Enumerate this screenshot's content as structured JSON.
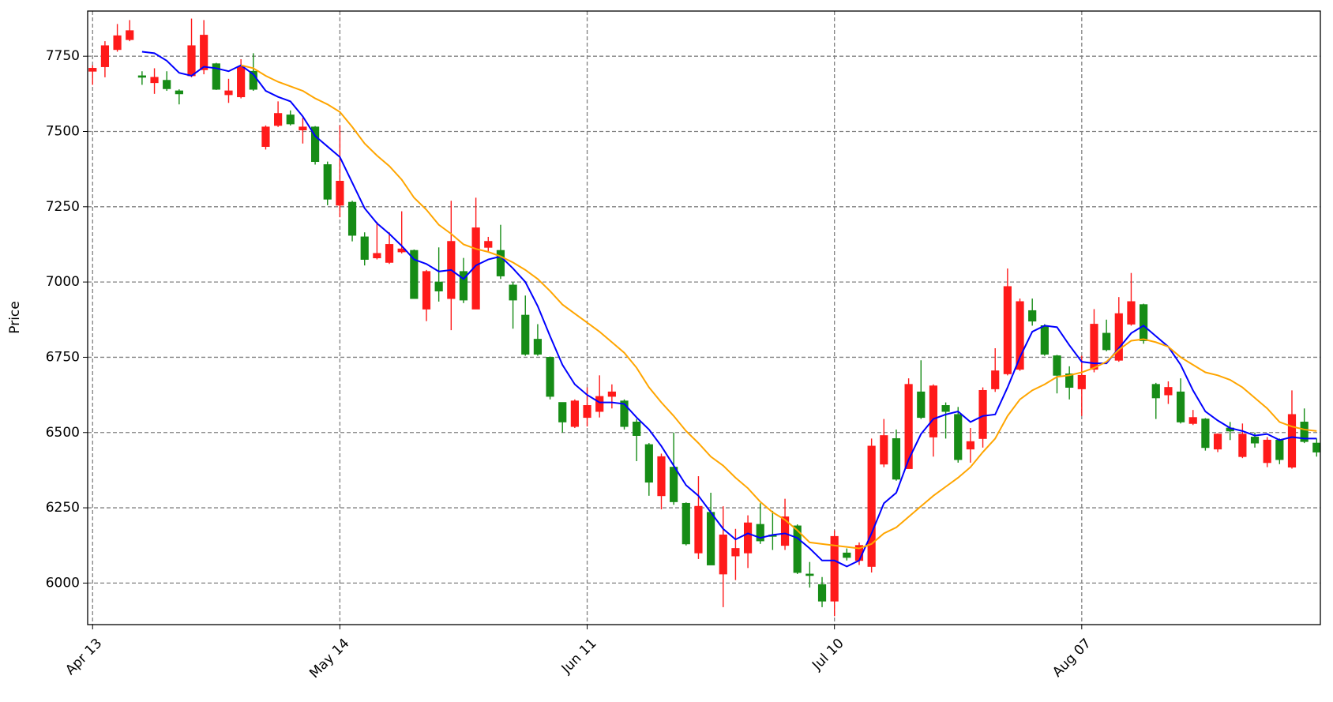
{
  "chart_data": {
    "type": "candlestick",
    "y_label": "Price",
    "categories": [
      "Apr 13",
      null,
      null,
      null,
      null,
      null,
      null,
      null,
      null,
      null,
      null,
      null,
      null,
      null,
      null,
      null,
      null,
      null,
      null,
      null,
      "May 14",
      null,
      null,
      null,
      null,
      null,
      null,
      null,
      null,
      null,
      null,
      null,
      null,
      null,
      null,
      null,
      null,
      null,
      null,
      null,
      "Jun 11",
      null,
      null,
      null,
      null,
      null,
      null,
      null,
      null,
      null,
      null,
      null,
      null,
      null,
      null,
      null,
      null,
      null,
      null,
      null,
      "Jul 10",
      null,
      null,
      null,
      null,
      null,
      null,
      null,
      null,
      null,
      null,
      null,
      null,
      null,
      null,
      null,
      null,
      null,
      null,
      null,
      "Aug 07",
      null,
      null,
      null,
      null,
      null,
      null,
      null,
      null,
      null,
      null,
      null,
      null,
      null,
      null,
      null,
      null,
      null,
      null,
      null
    ],
    "open": [
      7700,
      7715,
      7772,
      7805,
      7685,
      7662,
      7670,
      7635,
      7685,
      7705,
      7725,
      7622,
      7615,
      7700,
      7450,
      7520,
      7555,
      7505,
      7515,
      7390,
      7255,
      7265,
      7150,
      7080,
      7065,
      7100,
      7105,
      6910,
      7000,
      6945,
      7035,
      6910,
      7115,
      7105,
      6990,
      6890,
      6810,
      6750,
      6600,
      6520,
      6550,
      6570,
      6620,
      6605,
      6535,
      6460,
      6290,
      6385,
      6265,
      6100,
      6235,
      6030,
      6090,
      6100,
      6195,
      6160,
      6125,
      6190,
      6030,
      5995,
      5940,
      6100,
      6075,
      6055,
      6395,
      6480,
      6380,
      6635,
      6485,
      6590,
      6560,
      6445,
      6480,
      6645,
      6695,
      6710,
      6905,
      6855,
      6755,
      6695,
      6645,
      6710,
      6830,
      6740,
      6860,
      6925,
      6660,
      6625,
      6635,
      6530,
      6545,
      6445,
      6515,
      6420,
      6485,
      6400,
      6475,
      6385,
      6535,
      6465
    ],
    "high": [
      7720,
      7800,
      7857,
      7870,
      7700,
      7710,
      7700,
      7640,
      7875,
      7870,
      7728,
      7675,
      7740,
      7760,
      7520,
      7600,
      7570,
      7545,
      7518,
      7400,
      7520,
      7270,
      7165,
      7200,
      7165,
      7235,
      7108,
      7040,
      7115,
      7270,
      7080,
      7280,
      7150,
      7190,
      7000,
      6955,
      6860,
      6752,
      6600,
      6610,
      6650,
      6690,
      6660,
      6610,
      6545,
      6465,
      6430,
      6500,
      6268,
      6355,
      6300,
      6255,
      6180,
      6225,
      6265,
      6240,
      6280,
      6195,
      6070,
      6020,
      6175,
      6115,
      6135,
      6480,
      6545,
      6510,
      6680,
      6740,
      6660,
      6600,
      6585,
      6515,
      6650,
      6780,
      7045,
      6945,
      6945,
      6860,
      6758,
      6720,
      6755,
      6910,
      6875,
      6950,
      7030,
      6928,
      6665,
      6670,
      6680,
      6575,
      6548,
      6497,
      6535,
      6530,
      6500,
      6485,
      6480,
      6640,
      6580,
      6480
    ],
    "low": [
      7655,
      7680,
      7765,
      7800,
      7655,
      7625,
      7635,
      7590,
      7680,
      7690,
      7638,
      7595,
      7610,
      7635,
      7440,
      7515,
      7520,
      7460,
      7390,
      7255,
      7215,
      7135,
      7055,
      7075,
      7060,
      7095,
      6945,
      6870,
      6935,
      6840,
      6930,
      6910,
      7100,
      7010,
      6845,
      6755,
      6755,
      6610,
      6500,
      6515,
      6520,
      6550,
      6580,
      6510,
      6405,
      6290,
      6245,
      6260,
      6125,
      6080,
      6060,
      5920,
      6010,
      6050,
      6130,
      6110,
      6110,
      6030,
      5985,
      5920,
      5890,
      6075,
      6060,
      6035,
      6385,
      6340,
      6380,
      6545,
      6420,
      6480,
      6400,
      6400,
      6450,
      6635,
      6690,
      6705,
      6855,
      6755,
      6630,
      6610,
      6555,
      6700,
      6770,
      6735,
      6855,
      6795,
      6545,
      6595,
      6530,
      6525,
      6440,
      6435,
      6475,
      6415,
      6450,
      6385,
      6395,
      6380,
      6465,
      6420
    ],
    "close": [
      7710,
      7785,
      7818,
      7835,
      7680,
      7680,
      7642,
      7625,
      7785,
      7820,
      7640,
      7635,
      7715,
      7640,
      7515,
      7560,
      7525,
      7515,
      7400,
      7275,
      7335,
      7155,
      7075,
      7095,
      7125,
      7110,
      6945,
      7035,
      6970,
      7135,
      6940,
      7180,
      7135,
      7020,
      6940,
      6760,
      6760,
      6620,
      6535,
      6605,
      6590,
      6620,
      6635,
      6520,
      6490,
      6335,
      6420,
      6270,
      6130,
      6255,
      6060,
      6160,
      6115,
      6200,
      6140,
      6155,
      6220,
      6035,
      6025,
      5940,
      6155,
      6085,
      6125,
      6455,
      6490,
      6345,
      6660,
      6550,
      6655,
      6570,
      6410,
      6470,
      6640,
      6705,
      6985,
      6935,
      6870,
      6760,
      6690,
      6650,
      6690,
      6860,
      6775,
      6895,
      6935,
      6805,
      6615,
      6650,
      6535,
      6550,
      6450,
      6495,
      6505,
      6495,
      6465,
      6475,
      6410,
      6560,
      6470,
      6435
    ],
    "up_color": "#ff1a1a",
    "down_color": "#168c16",
    "moving_averages": [
      {
        "color": "#0000ff",
        "values": [
          null,
          null,
          null,
          null,
          7765,
          7760,
          7735,
          7695,
          7685,
          7715,
          7710,
          7700,
          7720,
          7690,
          7635,
          7615,
          7600,
          7550,
          7485,
          7450,
          7415,
          7330,
          7245,
          7195,
          7160,
          7120,
          7075,
          7060,
          7035,
          7040,
          7010,
          7055,
          7075,
          7085,
          7045,
          7000,
          6920,
          6820,
          6725,
          6660,
          6625,
          6600,
          6600,
          6595,
          6550,
          6510,
          6455,
          6390,
          6325,
          6290,
          6235,
          6180,
          6145,
          6165,
          6150,
          6160,
          6165,
          6150,
          6115,
          6075,
          6075,
          6055,
          6075,
          6165,
          6265,
          6300,
          6410,
          6495,
          6545,
          6560,
          6570,
          6535,
          6555,
          6560,
          6650,
          6750,
          6835,
          6855,
          6850,
          6790,
          6735,
          6730,
          6730,
          6780,
          6830,
          6855,
          6820,
          6785,
          6725,
          6640,
          6570,
          6540,
          6515,
          6505,
          6490,
          6495,
          6475,
          6485,
          6480,
          6480
        ]
      },
      {
        "color": "#ffa500",
        "values": [
          null,
          null,
          null,
          null,
          null,
          null,
          null,
          null,
          null,
          null,
          null,
          null,
          7720,
          7710,
          7685,
          7665,
          7650,
          7635,
          7610,
          7590,
          7565,
          7515,
          7460,
          7420,
          7385,
          7340,
          7280,
          7240,
          7190,
          7160,
          7125,
          7110,
          7100,
          7085,
          7065,
          7040,
          7010,
          6970,
          6925,
          6895,
          6865,
          6835,
          6800,
          6765,
          6715,
          6650,
          6600,
          6555,
          6505,
          6465,
          6420,
          6390,
          6350,
          6315,
          6270,
          6235,
          6210,
          6175,
          6135,
          6130,
          6125,
          6120,
          6115,
          6130,
          6165,
          6185,
          6220,
          6255,
          6290,
          6320,
          6350,
          6385,
          6435,
          6480,
          6555,
          6610,
          6640,
          6660,
          6685,
          6690,
          6700,
          6715,
          6735,
          6775,
          6805,
          6810,
          6800,
          6785,
          6750,
          6725,
          6700,
          6690,
          6675,
          6650,
          6615,
          6580,
          6535,
          6520,
          6510,
          6505
        ]
      }
    ],
    "ylim": [
      5862,
      7900
    ],
    "yticks": [
      6000,
      6250,
      6500,
      6750,
      7000,
      7250,
      7500,
      7750
    ],
    "grid": true
  }
}
